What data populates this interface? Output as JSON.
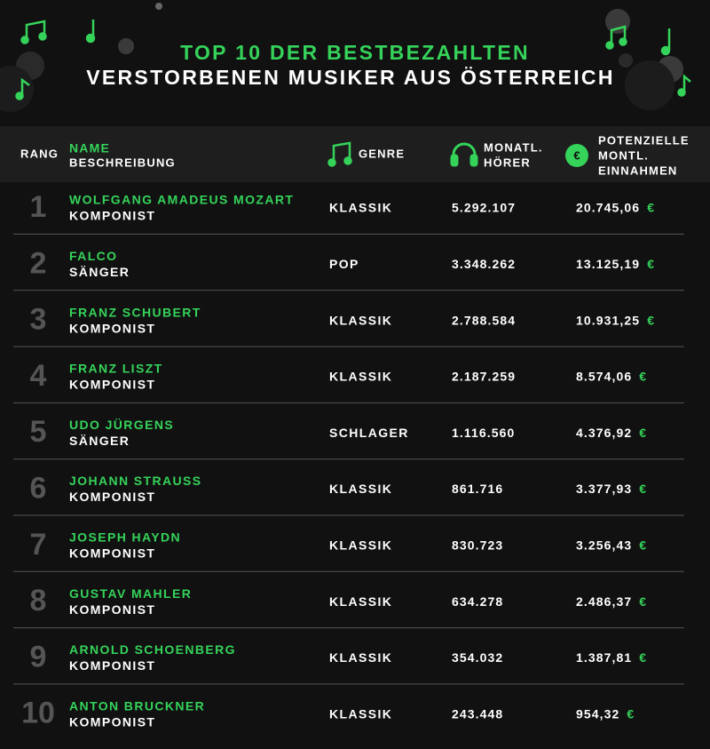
{
  "header": {
    "title_line1": "TOP 10 DER BESTBEZAHLTEN",
    "title_line2": "VERSTORBENEN MUSIKER AUS ÖSTERREICH"
  },
  "currency": "€",
  "table": {
    "columns": {
      "rank": "RANG",
      "name": "NAME",
      "description": "BESCHREIBUNG",
      "genre": "GENRE",
      "listeners": [
        "MONATL.",
        "HÖRER"
      ],
      "earnings": [
        "POTENZIELLE",
        "MONTL.",
        "EINNAHMEN"
      ]
    },
    "rows": [
      [
        "1",
        "WOLFGANG AMADEUS MOZART",
        "KOMPONIST",
        "KLASSIK",
        "5.292.107",
        "20.745,06"
      ],
      [
        "2",
        "FALCO",
        "SÄNGER",
        "POP",
        "3.348.262",
        "13.125,19"
      ],
      [
        "3",
        "FRANZ SCHUBERT",
        "KOMPONIST",
        "KLASSIK",
        "2.788.584",
        "10.931,25"
      ],
      [
        "4",
        "FRANZ LISZT",
        "KOMPONIST",
        "KLASSIK",
        "2.187.259",
        "8.574,06"
      ],
      [
        "5",
        "UDO JÜRGENS",
        "SÄNGER",
        "SCHLAGER",
        "1.116.560",
        "4.376,92"
      ],
      [
        "6",
        "JOHANN STRAUSS",
        "KOMPONIST",
        "KLASSIK",
        "861.716",
        "3.377,93"
      ],
      [
        "7",
        "JOSEPH HAYDN",
        "KOMPONIST",
        "KLASSIK",
        "830.723",
        "3.256,43"
      ],
      [
        "8",
        "GUSTAV MAHLER",
        "KOMPONIST",
        "KLASSIK",
        "634.278",
        "2.486,37"
      ],
      [
        "9",
        "ARNOLD SCHOENBERG",
        "KOMPONIST",
        "KLASSIK",
        "354.032",
        "1.387,81"
      ],
      [
        "10",
        "ANTON BRUCKNER",
        "KOMPONIST",
        "KLASSIK",
        "243.448",
        "954,32"
      ]
    ]
  }
}
